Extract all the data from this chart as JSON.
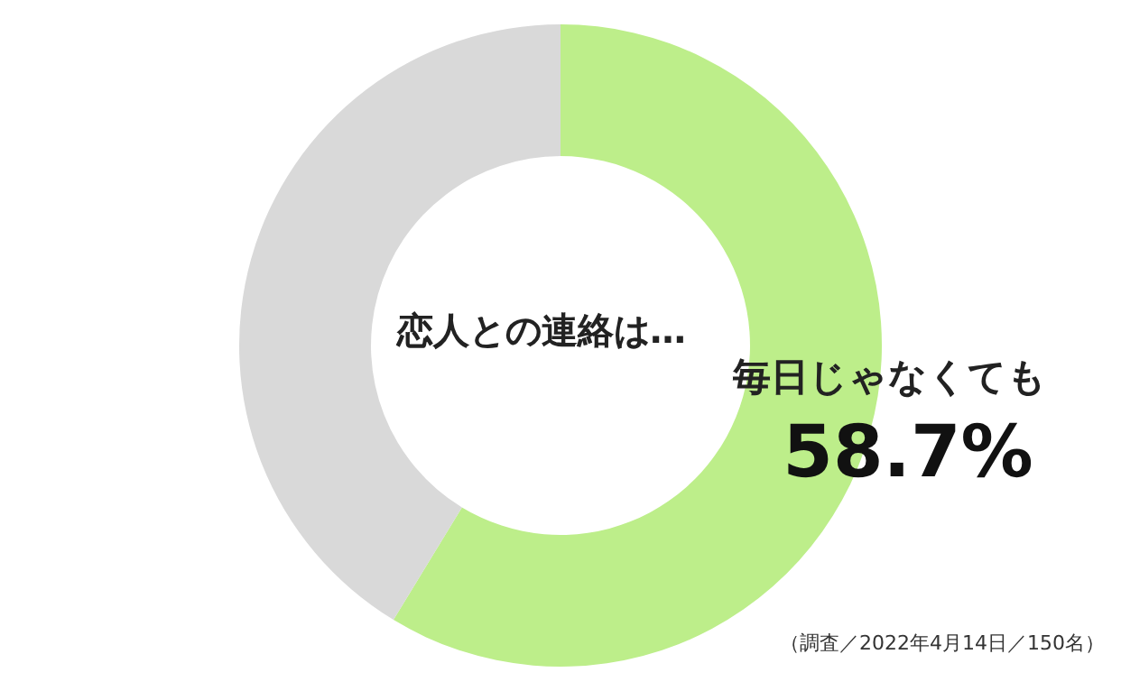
{
  "chart_data": {
    "type": "donut",
    "title": "恋人との連絡は…",
    "categories": [
      "毎日じゃなくても",
      null
    ],
    "values": [
      58.7,
      41.3
    ],
    "colors": [
      "#bdee8a",
      "#d9d9d9"
    ],
    "value_labels": [
      "58.7%",
      null
    ],
    "annotations": [
      "（調査／2022年4月14日／150名）"
    ]
  }
}
